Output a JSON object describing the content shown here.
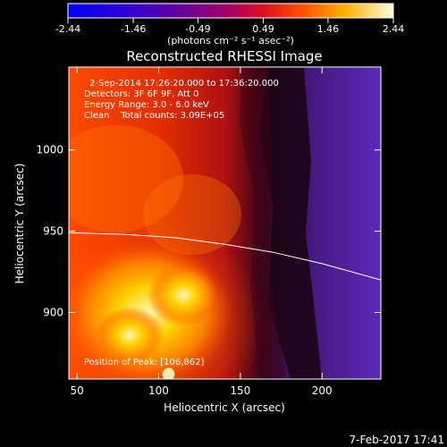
{
  "chart_data": {
    "type": "heatmap",
    "title": "Reconstructed RHESSI Image",
    "xlabel": "Heliocentric X (arcsec)",
    "ylabel": "Heliocentric Y (arcsec)",
    "xlim": [
      45,
      236
    ],
    "ylim": [
      859,
      1051
    ],
    "x_ticks": [
      50,
      100,
      150,
      200
    ],
    "y_ticks": [
      900,
      950,
      1000
    ],
    "colorbar": {
      "ticks": [
        "-2.44",
        "-1.46",
        "-0.49",
        "0.49",
        "1.46",
        "2.44"
      ],
      "min": -2.44,
      "max": 2.44,
      "units": "(photons cm⁻² s⁻¹ asec⁻²)"
    },
    "annotations": [
      "2-Sep-2014 17:26:20.000 to 17:36:20.000",
      "Detectors: 3F 6F 9F, Att 0",
      "Energy Range: 3.0 - 6.0 keV",
      "Clean    Total counts: 3.09E+05"
    ],
    "peak_label": "Position of Peak: [106,862]",
    "peak": [
      106,
      862
    ],
    "limb_curve": [
      [
        45,
        949
      ],
      [
        80,
        948
      ],
      [
        110,
        946
      ],
      [
        140,
        942
      ],
      [
        170,
        937
      ],
      [
        200,
        930
      ],
      [
        236,
        920
      ]
    ],
    "grid": false
  },
  "footer_date": "7-Feb-2017 17:41"
}
